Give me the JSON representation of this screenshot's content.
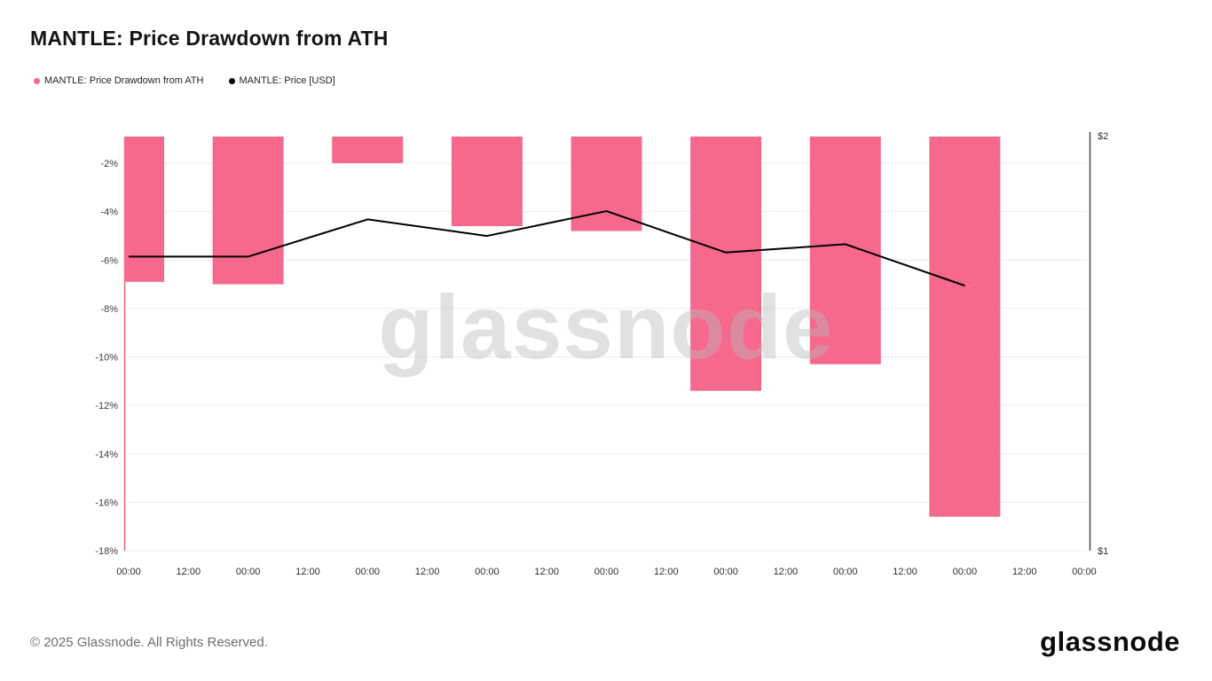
{
  "page": {
    "title": "MANTLE: Price Drawdown from ATH",
    "watermark": "glassnode",
    "footer_copyright": "© 2025 Glassnode. All Rights Reserved.",
    "brand_logo": "glassnode"
  },
  "legend": [
    {
      "label": "MANTLE: Price Drawdown from ATH",
      "color": "#f7698c"
    },
    {
      "label": "MANTLE: Price [USD]",
      "color": "#000000"
    }
  ],
  "chart_data": {
    "type": "bar",
    "title": "MANTLE: Price Drawdown from ATH",
    "x_tick_labels": [
      "00:00",
      "12:00",
      "00:00",
      "12:00",
      "00:00",
      "12:00",
      "00:00",
      "12:00",
      "00:00",
      "12:00",
      "00:00",
      "12:00",
      "00:00",
      "12:00",
      "00:00",
      "12:00",
      "00:00"
    ],
    "bar_tick_indices": [
      0,
      2,
      4,
      6,
      8,
      10,
      12,
      14
    ],
    "bars": {
      "name": "MANTLE: Price Drawdown from ATH",
      "unit": "percent",
      "color": "#f7698c",
      "values": [
        -6.9,
        -7.0,
        -2.0,
        -4.6,
        -4.8,
        -11.4,
        -10.3,
        -16.6
      ]
    },
    "line": {
      "name": "MANTLE: Price [USD]",
      "unit": "USD",
      "color": "#000000",
      "values": [
        1.71,
        1.71,
        1.8,
        1.76,
        1.82,
        1.72,
        1.74,
        1.64
      ]
    },
    "left_axis": {
      "tick_labels": [
        "-2%",
        "-4%",
        "-6%",
        "-8%",
        "-10%",
        "-12%",
        "-14%",
        "-16%",
        "-18%"
      ],
      "tick_values": [
        -2,
        -4,
        -6,
        -8,
        -10,
        -12,
        -14,
        -16,
        -18
      ],
      "max": -0.9,
      "min": -18,
      "grid": true
    },
    "right_axis": {
      "tick_labels": [
        "$2",
        "$1"
      ],
      "tick_values": [
        2,
        1
      ],
      "max": 2,
      "min": 1
    }
  }
}
